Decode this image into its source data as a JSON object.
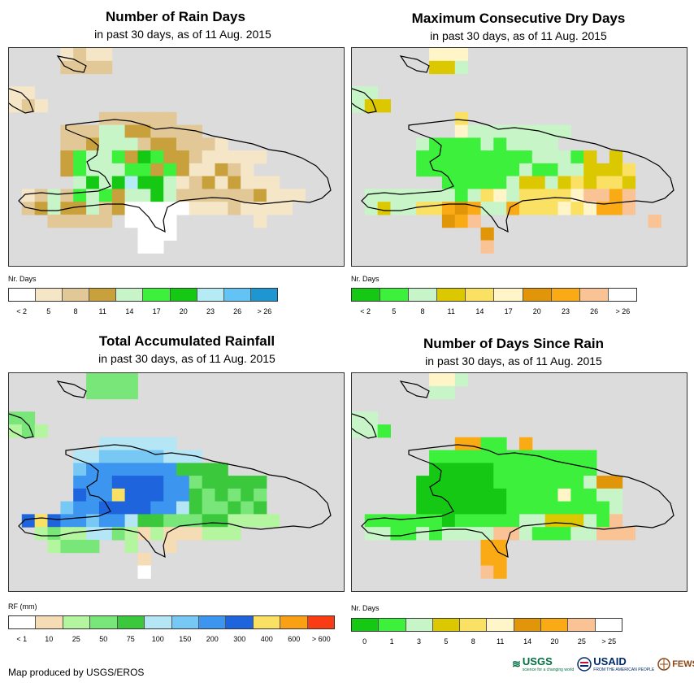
{
  "panels": [
    {
      "key": "rain_days",
      "title": "Number of Rain Days",
      "subtitle": "in past 30 days, as of 11 Aug. 2015",
      "legend_title": "Nr. Days",
      "legend_colors": [
        "#ffffff",
        "#f5e6c8",
        "#e2c896",
        "#c8a03c",
        "#c8f5c8",
        "#3cf03c",
        "#14c814",
        "#b4ebf5",
        "#64c3f5",
        "#1e96d2"
      ],
      "legend_labels": [
        "< 2",
        "5",
        "8",
        "11",
        "14",
        "17",
        "20",
        "23",
        "26",
        "> 26"
      ]
    },
    {
      "key": "max_dry",
      "title": "Maximum Consecutive Dry Days",
      "subtitle": "in past 30 days, as of 11 Aug. 2015",
      "legend_title": "Nr. Days",
      "legend_colors": [
        "#14c814",
        "#3cf03c",
        "#c8f5c8",
        "#dcc800",
        "#fae164",
        "#fff5c8",
        "#e1960a",
        "#faaa14",
        "#fac396",
        "#ffffff"
      ],
      "legend_labels": [
        "< 2",
        "5",
        "8",
        "11",
        "14",
        "17",
        "20",
        "23",
        "26",
        "> 26"
      ]
    },
    {
      "key": "total_rf",
      "title": "Total Accumulated Rainfall",
      "subtitle": "in past 30 days, as of 11 Aug. 2015",
      "legend_title": "RF (mm)",
      "legend_colors": [
        "#ffffff",
        "#f5dcb4",
        "#b4f5a0",
        "#78e678",
        "#3cc83c",
        "#b4e6f5",
        "#78c8f5",
        "#3c96f0",
        "#1e64dc",
        "#fae164",
        "#faa014",
        "#fa3c14"
      ],
      "legend_labels": [
        "< 1",
        "10",
        "25",
        "50",
        "75",
        "100",
        "150",
        "200",
        "300",
        "400",
        "600",
        "> 600"
      ]
    },
    {
      "key": "since_rain",
      "title": "Number of Days Since Rain",
      "subtitle": "in past 30 days, as of 11 Aug. 2015",
      "legend_title": "Nr. Days",
      "legend_colors": [
        "#14c814",
        "#3cf03c",
        "#c8f5c8",
        "#dcc800",
        "#fae164",
        "#fff5c8",
        "#e1960a",
        "#faaa14",
        "#fac396",
        "#ffffff"
      ],
      "legend_labels": [
        "0",
        "1",
        "3",
        "5",
        "8",
        "11",
        "14",
        "20",
        "25",
        "> 25"
      ]
    }
  ],
  "footer": {
    "credit": "Map produced by USGS/EROS",
    "logo_usgs": "USGS",
    "logo_usgs_tag": "science for a changing world",
    "logo_usaid": "USAID",
    "logo_usaid_tag": "FROM THE AMERICAN PEOPLE",
    "logo_fews": "FEWS NET"
  }
}
